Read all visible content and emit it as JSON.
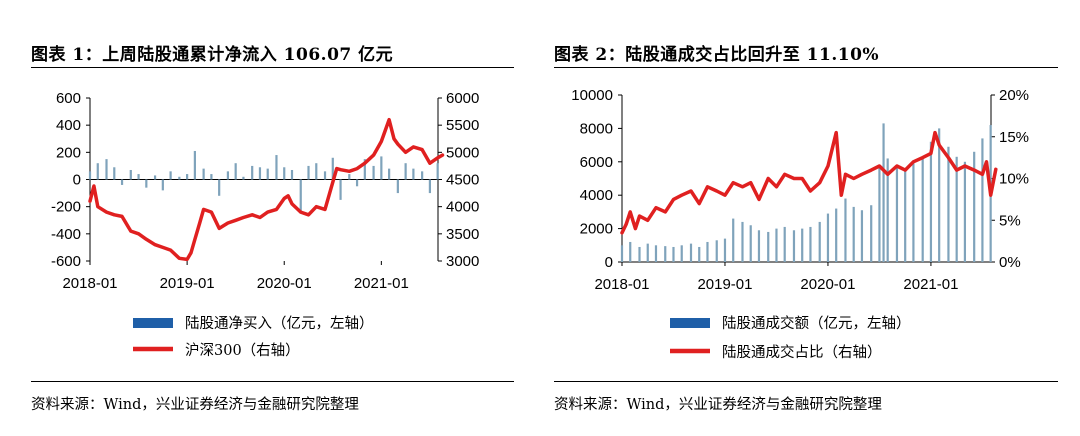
{
  "colors": {
    "bar": "#7fa3bb",
    "line": "#e02020",
    "legend_bar": "#1f5fa8"
  },
  "chart_data": [
    {
      "type": "bar+line",
      "title": "图表 1：上周陆股通累计净流入 106.07 亿元",
      "source": "资料来源：Wind，兴业证券经济与金融研究院整理",
      "x_ticks": [
        "2018-01",
        "2019-01",
        "2020-01",
        "2021-01"
      ],
      "x_range": [
        "2018-01",
        "2021-08"
      ],
      "y_left_ticks": [
        "600",
        "400",
        "200",
        "0",
        "-200",
        "-400",
        "-600"
      ],
      "y_left_range": [
        -600,
        600
      ],
      "y_right_ticks": [
        "6000",
        "5500",
        "5000",
        "4500",
        "4000",
        "3500",
        "3000"
      ],
      "y_right_range": [
        3000,
        6000
      ],
      "legend": [
        "陆股通净买入（亿元，左轴）",
        "沪深300（右轴）"
      ],
      "series": [
        {
          "name": "陆股通净买入（亿元，左轴）",
          "kind": "bar",
          "axis": "left",
          "x": [
            2018.0,
            2018.08,
            2018.17,
            2018.25,
            2018.33,
            2018.42,
            2018.5,
            2018.58,
            2018.67,
            2018.75,
            2018.83,
            2018.92,
            2019.0,
            2019.08,
            2019.17,
            2019.25,
            2019.33,
            2019.42,
            2019.5,
            2019.58,
            2019.67,
            2019.75,
            2019.83,
            2019.92,
            2020.0,
            2020.08,
            2020.17,
            2020.25,
            2020.33,
            2020.42,
            2020.5,
            2020.58,
            2020.67,
            2020.75,
            2020.83,
            2020.92,
            2021.0,
            2021.08,
            2021.17,
            2021.25,
            2021.33,
            2021.42,
            2021.5,
            2021.58
          ],
          "values": [
            60,
            120,
            150,
            90,
            -40,
            70,
            40,
            -60,
            30,
            -80,
            60,
            20,
            40,
            210,
            80,
            40,
            -120,
            60,
            120,
            20,
            100,
            90,
            80,
            180,
            90,
            70,
            -250,
            100,
            120,
            60,
            160,
            -150,
            40,
            -50,
            150,
            100,
            170,
            80,
            -100,
            120,
            80,
            60,
            -100,
            120
          ]
        },
        {
          "name": "沪深300（右轴）",
          "kind": "line",
          "axis": "right",
          "x": [
            2018.0,
            2018.04,
            2018.08,
            2018.17,
            2018.25,
            2018.33,
            2018.42,
            2018.5,
            2018.58,
            2018.67,
            2018.75,
            2018.83,
            2018.92,
            2019.0,
            2019.04,
            2019.08,
            2019.13,
            2019.17,
            2019.25,
            2019.33,
            2019.42,
            2019.5,
            2019.58,
            2019.67,
            2019.75,
            2019.83,
            2019.92,
            2020.0,
            2020.04,
            2020.08,
            2020.17,
            2020.25,
            2020.33,
            2020.42,
            2020.5,
            2020.54,
            2020.58,
            2020.67,
            2020.75,
            2020.83,
            2020.92,
            2021.0,
            2021.04,
            2021.08,
            2021.13,
            2021.17,
            2021.25,
            2021.33,
            2021.42,
            2021.5,
            2021.58,
            2021.63
          ],
          "values": [
            4100,
            4380,
            4000,
            3900,
            3850,
            3820,
            3550,
            3500,
            3400,
            3300,
            3250,
            3200,
            3050,
            3030,
            3150,
            3400,
            3700,
            3950,
            3900,
            3600,
            3700,
            3750,
            3800,
            3850,
            3800,
            3900,
            3950,
            4150,
            4200,
            4050,
            3900,
            3850,
            4000,
            3950,
            4450,
            4700,
            4680,
            4650,
            4700,
            4800,
            4950,
            5200,
            5400,
            5600,
            5250,
            5150,
            5000,
            5100,
            5050,
            4800,
            4900,
            4950
          ]
        }
      ]
    },
    {
      "type": "bar+line",
      "title": "图表 2：陆股通成交占比回升至 11.10%",
      "source": "资料来源：Wind，兴业证券经济与金融研究院整理",
      "x_ticks": [
        "2018-01",
        "2019-01",
        "2020-01",
        "2021-01"
      ],
      "x_range": [
        "2018-01",
        "2021-08"
      ],
      "y_left_ticks": [
        "10000",
        "8000",
        "6000",
        "4000",
        "2000",
        "0"
      ],
      "y_left_range": [
        0,
        10000
      ],
      "y_right_ticks": [
        "20%",
        "15%",
        "10%",
        "5%",
        "0%"
      ],
      "y_right_range": [
        0,
        20
      ],
      "legend": [
        "陆股通成交额（亿元，左轴）",
        "陆股通成交占比（右轴）"
      ],
      "series": [
        {
          "name": "陆股通成交额（亿元，左轴）",
          "kind": "bar",
          "axis": "left",
          "x": [
            2018.0,
            2018.08,
            2018.17,
            2018.25,
            2018.33,
            2018.42,
            2018.5,
            2018.58,
            2018.67,
            2018.75,
            2018.83,
            2018.92,
            2019.0,
            2019.08,
            2019.17,
            2019.25,
            2019.33,
            2019.42,
            2019.5,
            2019.58,
            2019.67,
            2019.75,
            2019.83,
            2019.92,
            2020.0,
            2020.08,
            2020.17,
            2020.25,
            2020.33,
            2020.42,
            2020.5,
            2020.54,
            2020.58,
            2020.67,
            2020.75,
            2020.83,
            2020.92,
            2021.0,
            2021.08,
            2021.17,
            2021.25,
            2021.33,
            2021.42,
            2021.5,
            2021.58
          ],
          "values": [
            1000,
            1200,
            900,
            1100,
            1000,
            950,
            900,
            1000,
            1100,
            900,
            1200,
            1300,
            1400,
            2600,
            2400,
            2200,
            1900,
            1800,
            2000,
            2100,
            1900,
            2000,
            2100,
            2400,
            2900,
            3200,
            3800,
            3300,
            3100,
            3400,
            5800,
            8300,
            6200,
            5800,
            5600,
            5900,
            6200,
            7200,
            8000,
            6900,
            6300,
            6000,
            6600,
            7400,
            8200
          ]
        },
        {
          "name": "陆股通成交占比（右轴）",
          "kind": "line",
          "axis": "right",
          "x": [
            2018.0,
            2018.04,
            2018.08,
            2018.13,
            2018.17,
            2018.25,
            2018.33,
            2018.42,
            2018.5,
            2018.58,
            2018.67,
            2018.75,
            2018.83,
            2018.92,
            2019.0,
            2019.08,
            2019.17,
            2019.25,
            2019.33,
            2019.42,
            2019.5,
            2019.58,
            2019.67,
            2019.75,
            2019.83,
            2019.92,
            2020.0,
            2020.08,
            2020.13,
            2020.17,
            2020.25,
            2020.33,
            2020.42,
            2020.5,
            2020.58,
            2020.67,
            2020.75,
            2020.83,
            2020.92,
            2021.0,
            2021.04,
            2021.08,
            2021.17,
            2021.25,
            2021.33,
            2021.42,
            2021.5,
            2021.54,
            2021.58,
            2021.63
          ],
          "values": [
            3.5,
            4.5,
            6,
            4,
            5.5,
            5,
            6.5,
            6,
            7.5,
            8,
            8.5,
            7,
            9,
            8.5,
            8,
            9.5,
            9,
            9.5,
            7.5,
            10,
            9,
            10.5,
            10,
            10,
            8.5,
            9.5,
            11.5,
            15.5,
            8,
            10.5,
            10,
            10.5,
            11,
            11.5,
            10.5,
            11.5,
            11,
            12,
            12.5,
            13,
            15.5,
            14,
            12.5,
            11,
            11.5,
            11,
            10.5,
            12,
            8,
            11.1
          ]
        }
      ]
    }
  ]
}
